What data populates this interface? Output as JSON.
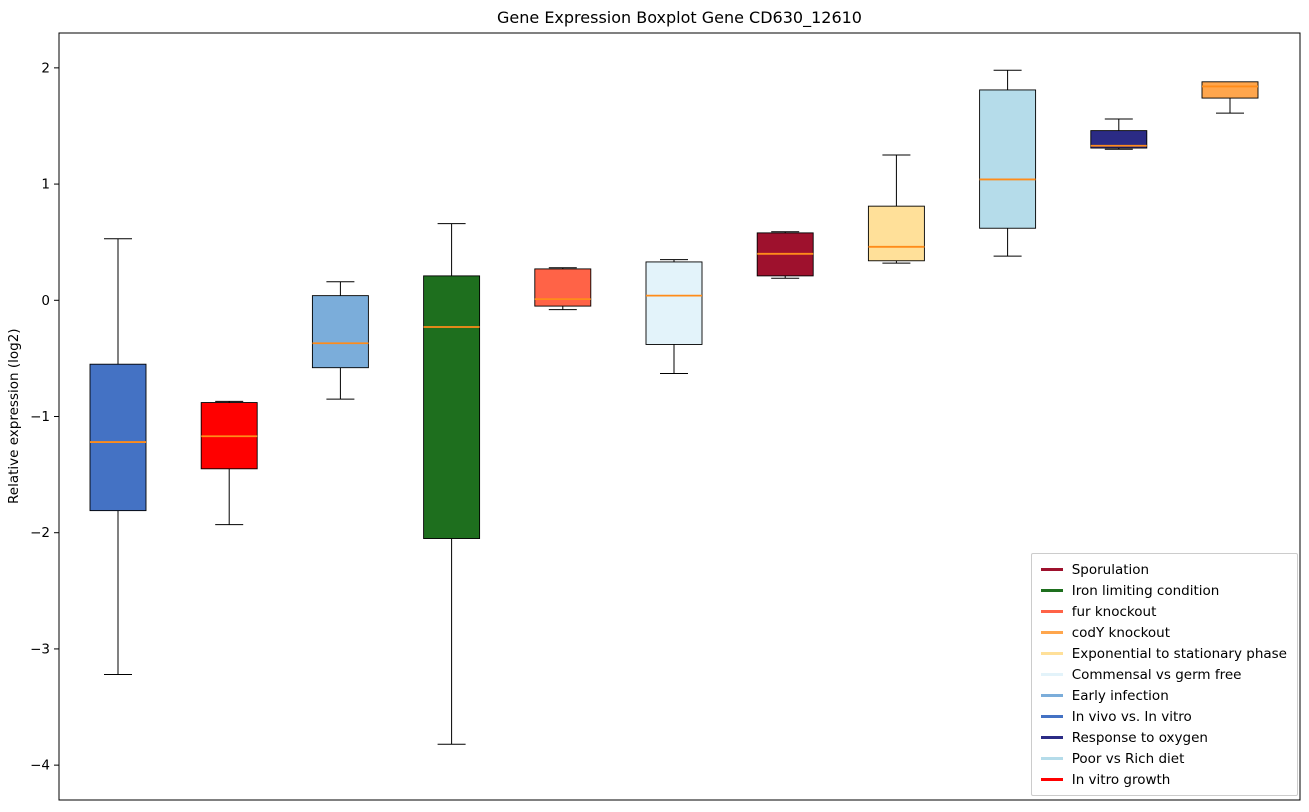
{
  "chart_data": {
    "type": "boxplot",
    "title": "Gene Expression Boxplot Gene CD630_12610",
    "ylabel": "Relative expression (log2)",
    "ylim": [
      -4.3,
      2.3
    ],
    "grid": false,
    "legend_position": "lower right inside",
    "median_color": "#ff8c1a",
    "whisker_color": "#000000",
    "yticks": [
      {
        "value": 2,
        "label": "2"
      },
      {
        "value": 1,
        "label": "1"
      },
      {
        "value": 0,
        "label": "0"
      },
      {
        "value": -1,
        "label": "−1"
      },
      {
        "value": -2,
        "label": "−2"
      },
      {
        "value": -3,
        "label": "−3"
      },
      {
        "value": -4,
        "label": "−4"
      }
    ],
    "boxes": [
      {
        "label": "In vivo vs. In vitro",
        "color": "#4472C4",
        "whislo": -3.22,
        "q1": -1.81,
        "med": -1.22,
        "q3": -0.55,
        "whishi": 0.53
      },
      {
        "label": "In vitro growth",
        "color": "#FF0000",
        "whislo": -1.93,
        "q1": -1.45,
        "med": -1.17,
        "q3": -0.88,
        "whishi": -0.87
      },
      {
        "label": "Early infection",
        "color": "#7BADDA",
        "whislo": -0.85,
        "q1": -0.58,
        "med": -0.37,
        "q3": 0.04,
        "whishi": 0.16
      },
      {
        "label": "Iron limiting condition",
        "color": "#1E6F1E",
        "whislo": -3.82,
        "q1": -2.05,
        "med": -0.23,
        "q3": 0.21,
        "whishi": 0.66
      },
      {
        "label": "fur knockout",
        "color": "#FF6347",
        "whislo": -0.08,
        "q1": -0.05,
        "med": 0.01,
        "q3": 0.27,
        "whishi": 0.28
      },
      {
        "label": "Commensal vs germ free",
        "color": "#E3F3FA",
        "whislo": -0.63,
        "q1": -0.38,
        "med": 0.04,
        "q3": 0.33,
        "whishi": 0.35
      },
      {
        "label": "Sporulation",
        "color": "#9E112D",
        "whislo": 0.19,
        "q1": 0.21,
        "med": 0.4,
        "q3": 0.58,
        "whishi": 0.59
      },
      {
        "label": "Exponential to stationary phase",
        "color": "#FFE099",
        "whislo": 0.32,
        "q1": 0.34,
        "med": 0.46,
        "q3": 0.81,
        "whishi": 1.25
      },
      {
        "label": "Poor vs Rich diet",
        "color": "#B5DCEA",
        "whislo": 0.38,
        "q1": 0.62,
        "med": 1.04,
        "q3": 1.81,
        "whishi": 1.98
      },
      {
        "label": "Response to oxygen",
        "color": "#2B2B85",
        "whislo": 1.3,
        "q1": 1.31,
        "med": 1.33,
        "q3": 1.46,
        "whishi": 1.56
      },
      {
        "label": "codY knockout",
        "color": "#FFA64D",
        "whislo": 1.61,
        "q1": 1.74,
        "med": 1.84,
        "q3": 1.88,
        "whishi": 1.87
      }
    ],
    "legend": [
      {
        "label": "Sporulation",
        "color": "#9E112D"
      },
      {
        "label": "Iron limiting condition",
        "color": "#1E6F1E"
      },
      {
        "label": "fur knockout",
        "color": "#FF6347"
      },
      {
        "label": "codY knockout",
        "color": "#FFA64D"
      },
      {
        "label": "Exponential to stationary phase",
        "color": "#FFE099"
      },
      {
        "label": "Commensal vs germ free",
        "color": "#E3F3FA"
      },
      {
        "label": "Early infection",
        "color": "#7BADDA"
      },
      {
        "label": "In vivo vs. In vitro",
        "color": "#4472C4"
      },
      {
        "label": "Response to oxygen",
        "color": "#2B2B85"
      },
      {
        "label": "Poor vs Rich diet",
        "color": "#B5DCEA"
      },
      {
        "label": "In vitro growth",
        "color": "#FF0000"
      }
    ]
  }
}
